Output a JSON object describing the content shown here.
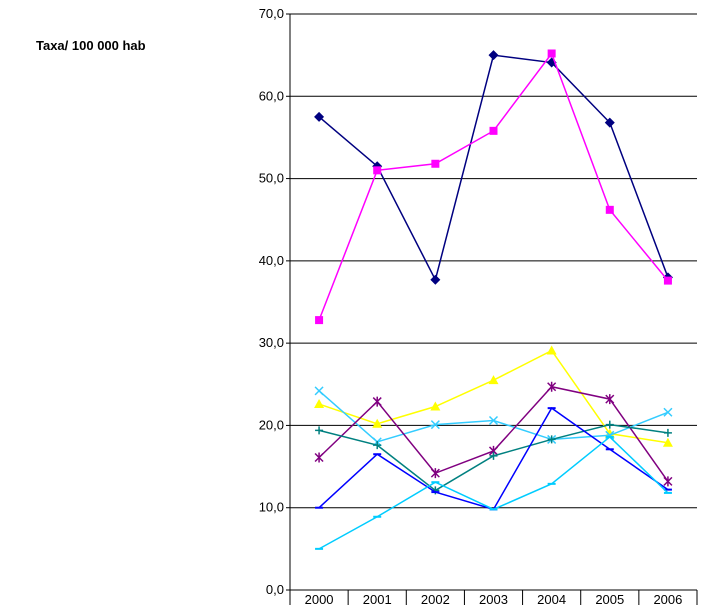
{
  "chart_data": {
    "type": "line",
    "title": "",
    "xlabel": "",
    "ylabel": "Taxa/ 100 000 hab",
    "ylim": [
      0,
      70
    ],
    "y_ticks": [
      "0,0",
      "10,0",
      "20,0",
      "30,0",
      "40,0",
      "50,0",
      "60,0",
      "70,0"
    ],
    "categories": [
      "2000",
      "2001",
      "2002",
      "2003",
      "2004",
      "2005",
      "2006"
    ],
    "grid": "horizontal",
    "legend": "none",
    "series": [
      {
        "color": "#000080",
        "marker": "diamond",
        "values": [
          57.5,
          51.5,
          37.7,
          65.0,
          64.1,
          56.8,
          38.0
        ]
      },
      {
        "color": "#ff00ff",
        "marker": "square",
        "values": [
          32.8,
          51.0,
          51.8,
          55.8,
          65.2,
          46.2,
          37.6
        ]
      },
      {
        "color": "#ffff00",
        "marker": "triangle",
        "values": [
          22.6,
          20.2,
          22.3,
          25.5,
          29.1,
          19.0,
          17.9
        ]
      },
      {
        "color": "#33ccff",
        "marker": "x",
        "values": [
          24.2,
          18.0,
          20.1,
          20.6,
          18.3,
          18.8,
          21.6
        ]
      },
      {
        "color": "#800080",
        "marker": "star",
        "values": [
          16.1,
          22.9,
          14.2,
          16.9,
          24.7,
          23.2,
          13.2
        ]
      },
      {
        "color": "#008080",
        "marker": "plus",
        "values": [
          19.4,
          17.6,
          12.1,
          16.3,
          18.3,
          20.1,
          19.1
        ]
      },
      {
        "color": "#0000ff",
        "marker": "dash",
        "values": [
          10.0,
          16.5,
          11.9,
          9.8,
          22.1,
          17.1,
          12.2
        ]
      },
      {
        "color": "#00ccff",
        "marker": "dash",
        "values": [
          5.0,
          8.9,
          13.1,
          9.8,
          12.9,
          18.6,
          11.8
        ]
      }
    ]
  }
}
